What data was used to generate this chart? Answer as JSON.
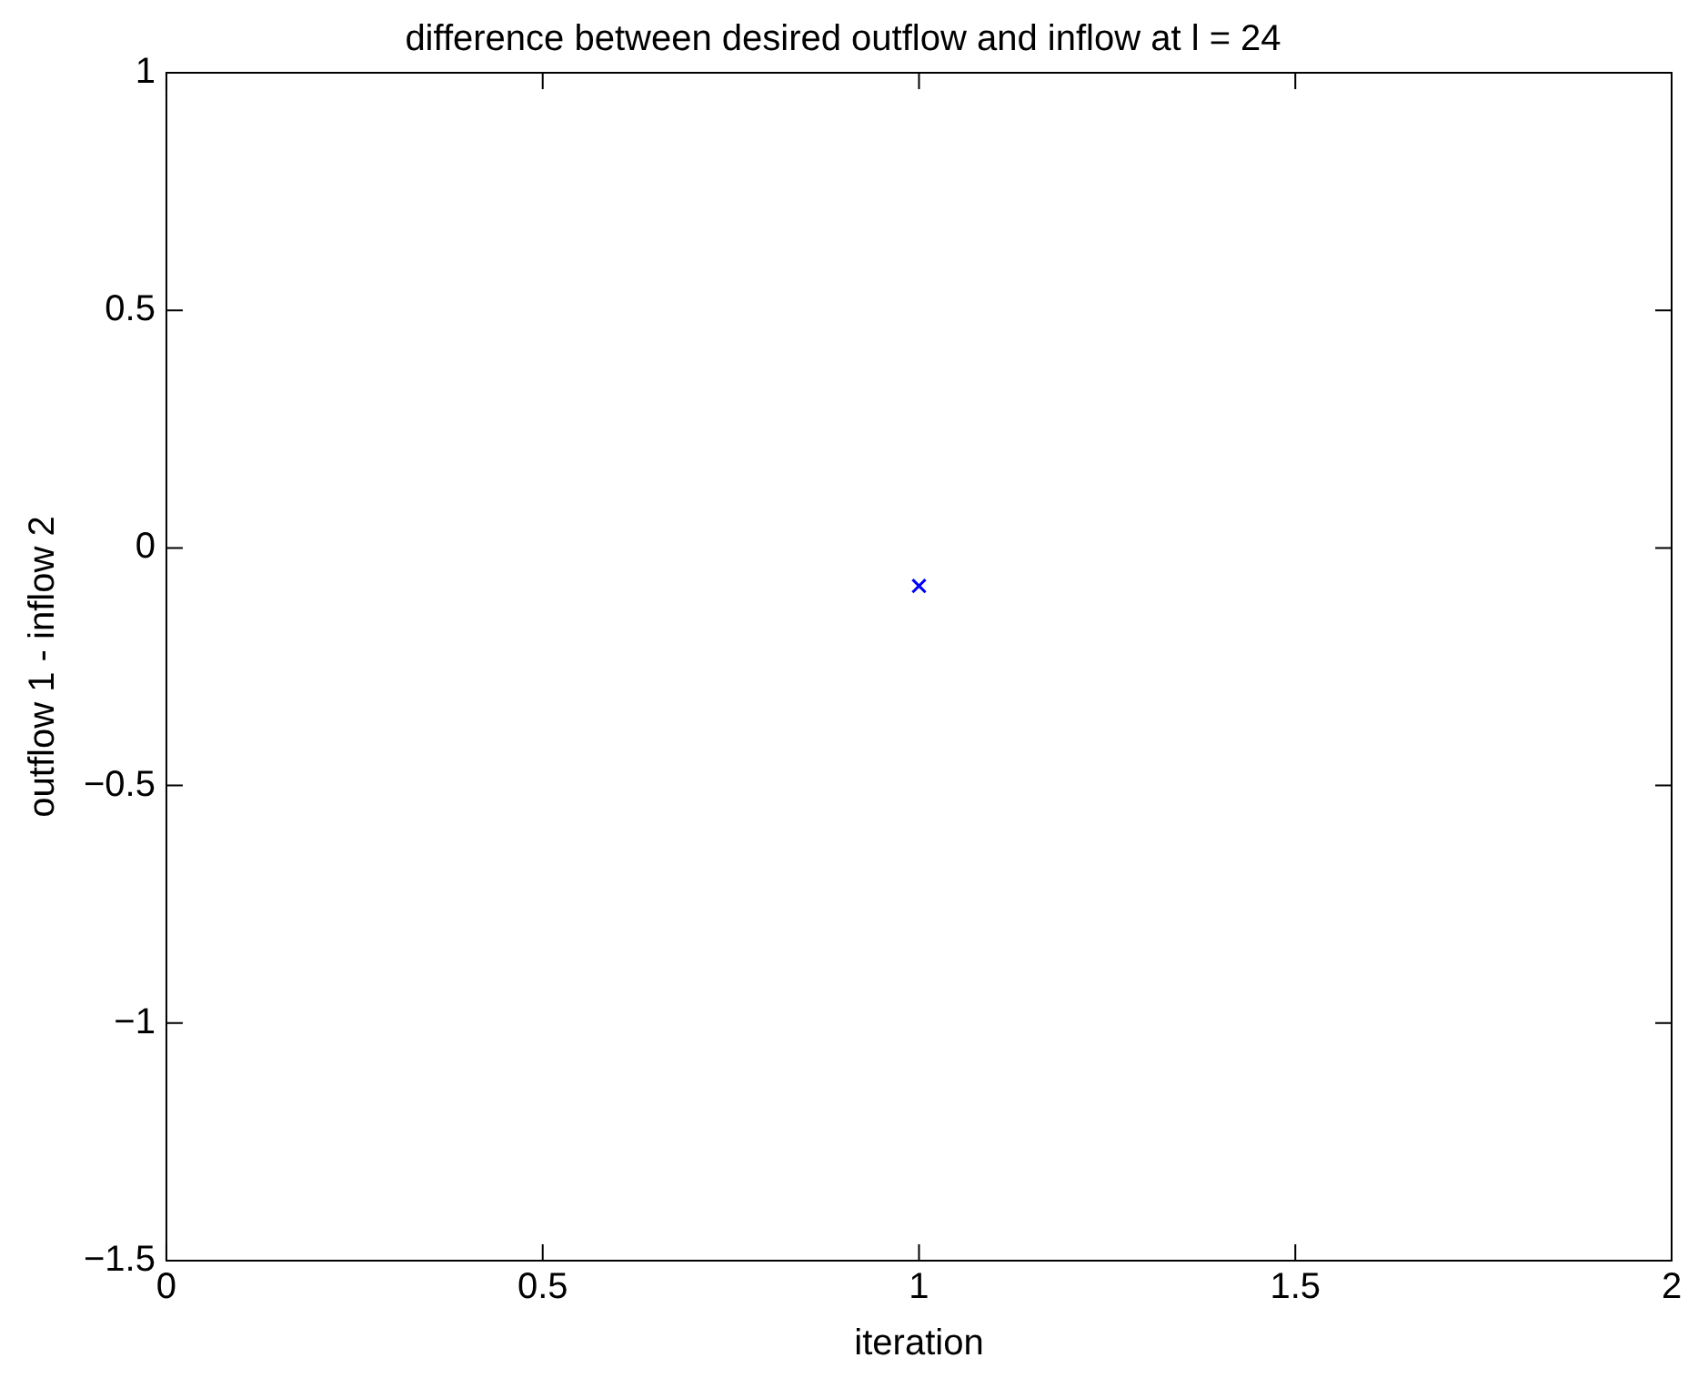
{
  "chart_data": {
    "type": "scatter",
    "title": "difference between desired outflow and inflow at l = 24",
    "xlabel": "iteration",
    "ylabel": "outflow 1 - inflow 2",
    "series": [
      {
        "color": "#0000ff",
        "x": [
          1
        ],
        "values": [
          -0.08
        ]
      }
    ],
    "xlim": [
      0,
      2
    ],
    "xticks": [
      0,
      0.5,
      1,
      1.5,
      2
    ],
    "ylim": [
      -1.5,
      1
    ],
    "yticks": [
      {
        "value": -1.5,
        "label": "−1.5"
      },
      {
        "value": -1,
        "label": "−1"
      },
      {
        "value": -0.5,
        "label": "−0.5"
      },
      0,
      0.5,
      1
    ],
    "marker": "cross",
    "grid": false,
    "legend": false
  }
}
